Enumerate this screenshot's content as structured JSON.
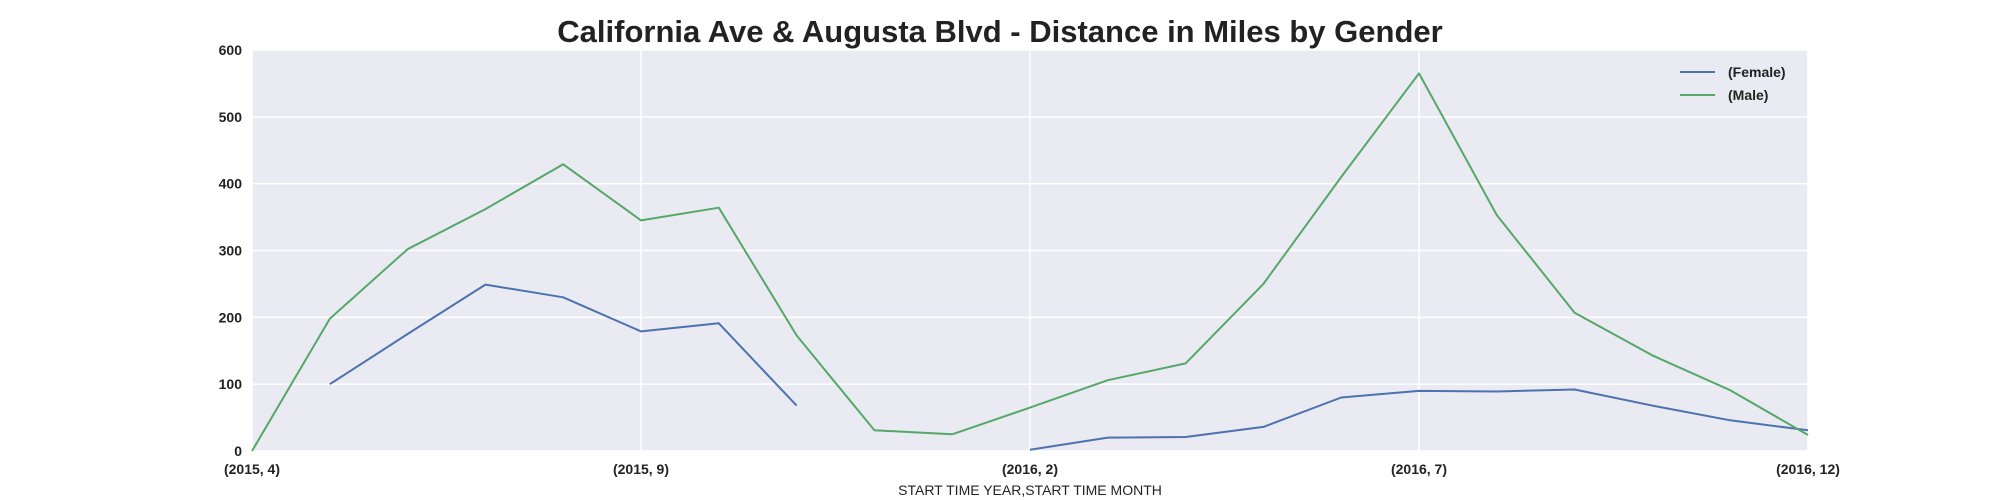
{
  "chart_data": {
    "type": "line",
    "title": "California Ave & Augusta Blvd - Distance in Miles by Gender",
    "xlabel": "START TIME YEAR,START TIME MONTH",
    "ylabel": "",
    "categories": [
      "(2015, 4)",
      "(2015, 5)",
      "(2015, 6)",
      "(2015, 7)",
      "(2015, 8)",
      "(2015, 9)",
      "(2015, 10)",
      "(2015, 11)",
      "(2015, 12)",
      "(2016, 1)",
      "(2016, 2)",
      "(2016, 3)",
      "(2016, 4)",
      "(2016, 5)",
      "(2016, 6)",
      "(2016, 7)",
      "(2016, 8)",
      "(2016, 9)",
      "(2016, 10)",
      "(2016, 11)",
      "(2016, 12)"
    ],
    "x_tick_labels": [
      "(2015, 4)",
      "(2015, 9)",
      "(2016, 2)",
      "(2016, 7)",
      "(2016, 12)"
    ],
    "x_tick_indices": [
      0,
      5,
      10,
      15,
      20
    ],
    "ylim": [
      0,
      600
    ],
    "y_ticks": [
      0,
      100,
      200,
      300,
      400,
      500,
      600
    ],
    "grid": true,
    "legend_position": "top-right",
    "series": [
      {
        "name": "(Female)",
        "color": "#4c72b0",
        "values": [
          null,
          100,
          175,
          249,
          230,
          179,
          191,
          68,
          null,
          null,
          2,
          20,
          21,
          36,
          80,
          90,
          89,
          92,
          68,
          46,
          31
        ]
      },
      {
        "name": "(Male)",
        "color": "#55a868",
        "values": [
          0,
          198,
          302,
          362,
          429,
          345,
          364,
          173,
          31,
          25,
          65,
          106,
          131,
          250,
          410,
          565,
          353,
          207,
          143,
          91,
          24
        ]
      }
    ]
  }
}
